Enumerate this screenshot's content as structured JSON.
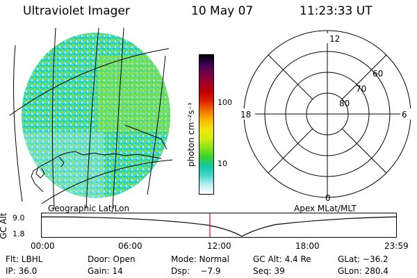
{
  "header": {
    "instrument": "Ultraviolet Imager",
    "date": "10 May 07",
    "time": "11:23:33 UT"
  },
  "map": {
    "caption_left": "Geographic Lat/Lon",
    "caption_right": "Apex MLat/MLT"
  },
  "colorbar": {
    "unit_label": "photon cm⁻²s⁻¹",
    "ticks": [
      "100",
      "10"
    ],
    "colors": [
      "#ffffff",
      "#b8eef2",
      "#46d6cc",
      "#14c8a0",
      "#39d22e",
      "#8ee219",
      "#d2ec12",
      "#f2e60a",
      "#fbb400",
      "#f07000",
      "#e22200",
      "#bf0000",
      "#a0002a",
      "#78004c",
      "#3c0052",
      "#000000"
    ]
  },
  "polar": {
    "mlt_labels": {
      "top": "12",
      "left": "18",
      "right": "6",
      "bottom": "0"
    },
    "lat_labels": [
      "60",
      "70",
      "80"
    ]
  },
  "timeline": {
    "axis_label": "GC Alt",
    "y_ticks": [
      "9.0",
      "1.8"
    ],
    "x_ticks": [
      "00:00",
      "06:00",
      "12:00",
      "18:00",
      "23:59"
    ],
    "marker_time": "11:23:33",
    "marker_color": "#e00000"
  },
  "status": {
    "row1": [
      "Flt: LBHL",
      "Door: Open",
      "Mode: Normal",
      "GC Alt: 4.4 Re",
      "GLat: −36.2"
    ],
    "row2": [
      "IP: 36.0",
      "Gain: 14",
      "Dsp:    −7.9",
      "Seq: 39",
      "GLon: 280.4"
    ]
  }
}
